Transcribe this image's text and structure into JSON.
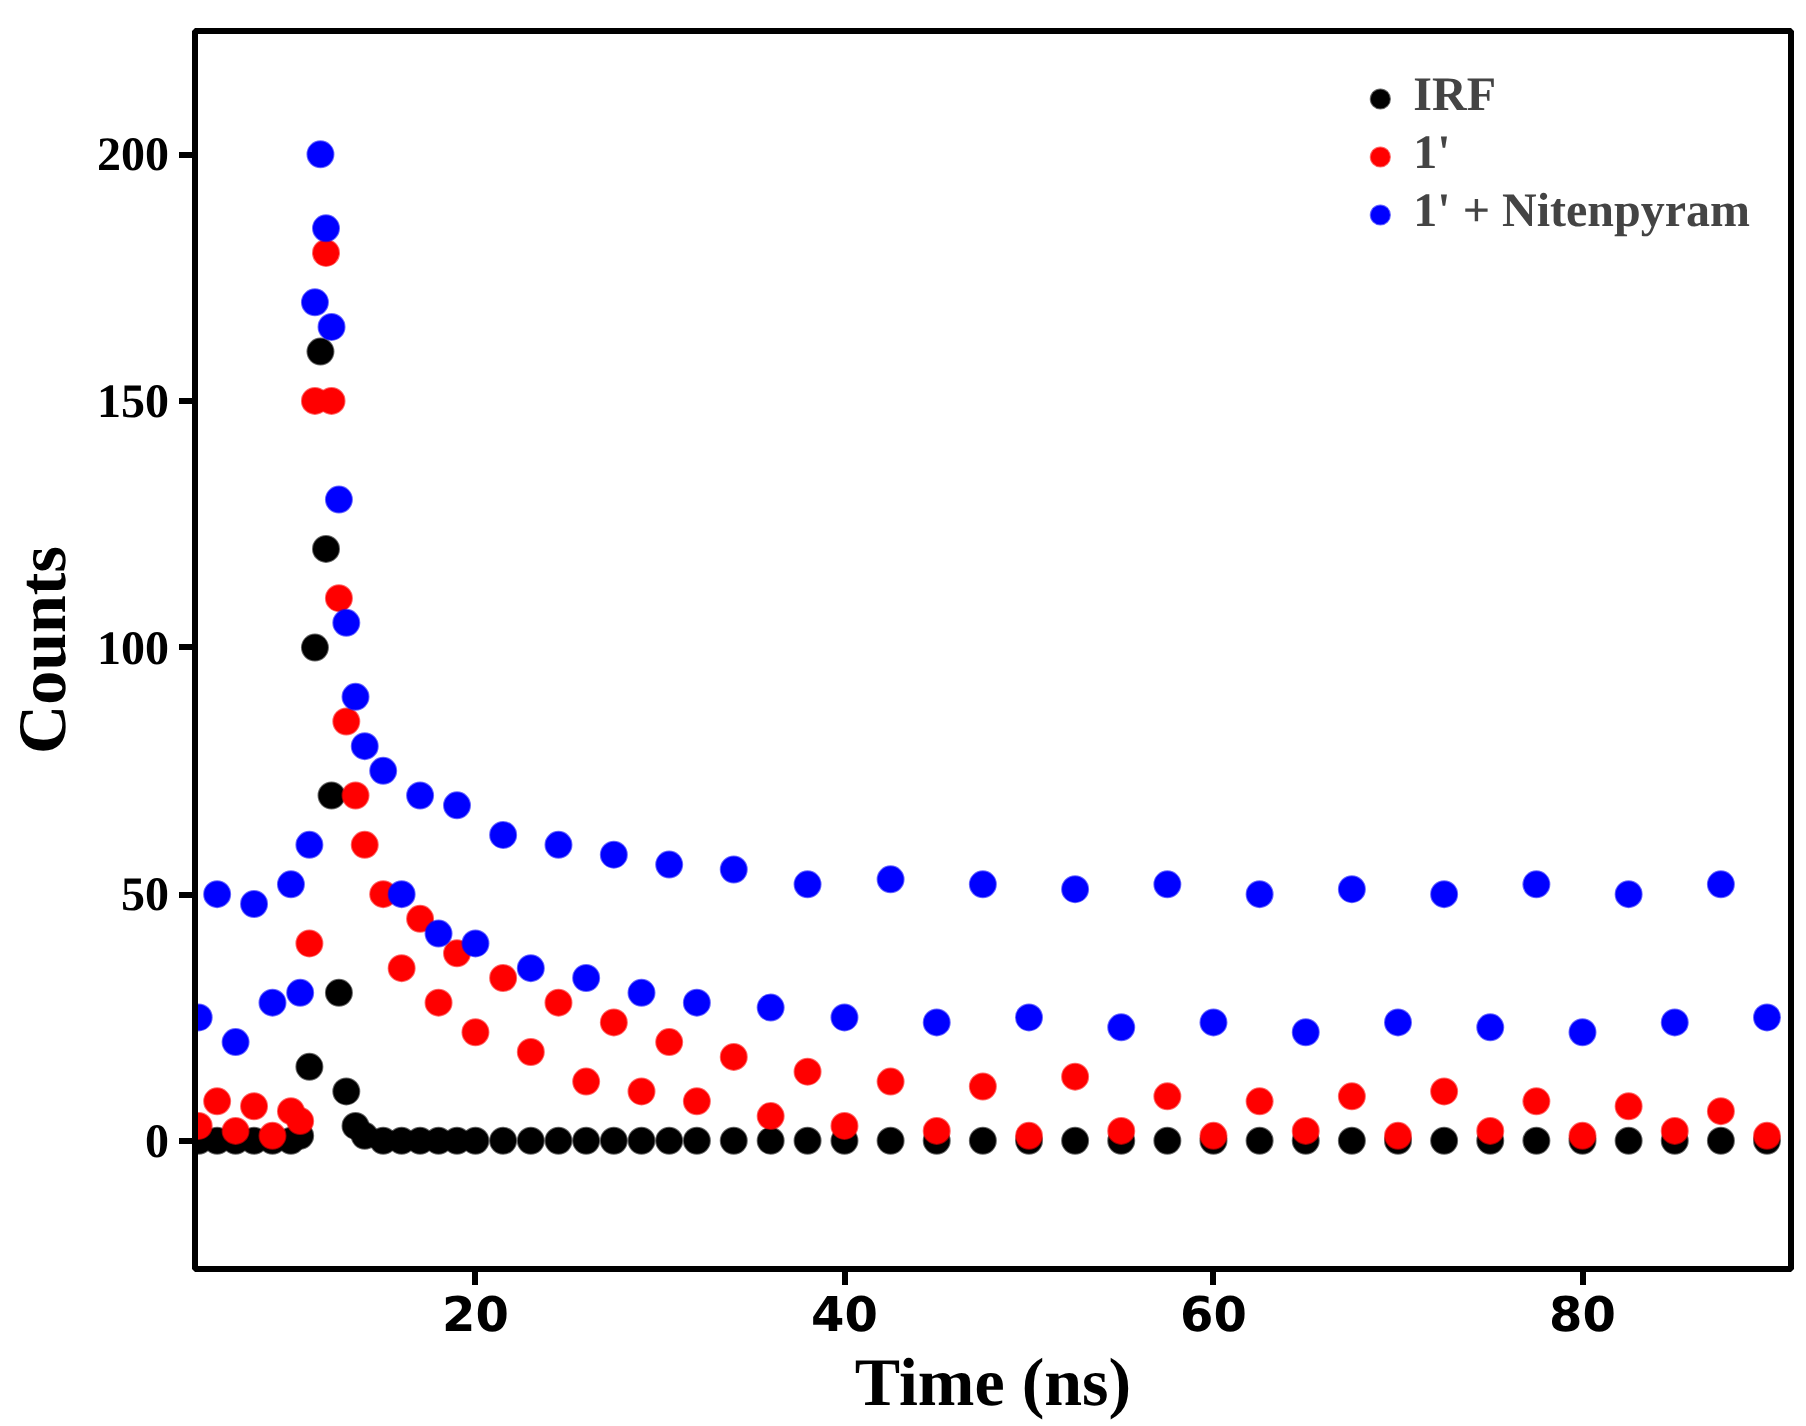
{
  "chart_data": {
    "type": "scatter",
    "xlabel": "Time (ns)",
    "ylabel": "Counts",
    "x": [
      5,
      6,
      7,
      8,
      9,
      10,
      10.5,
      11,
      11.3,
      11.6,
      11.9,
      12.2,
      12.6,
      13,
      13.5,
      14,
      15,
      16,
      17,
      18,
      19,
      20,
      21.5,
      23,
      24.5,
      26,
      27.5,
      29,
      30.5,
      32,
      34,
      36,
      38,
      40,
      42.5,
      45,
      47.5,
      50,
      52.5,
      55,
      57.5,
      60,
      62.5,
      65,
      67.5,
      70,
      72.5,
      75,
      77.5,
      80,
      82.5,
      85,
      87.5,
      90
    ],
    "series": [
      {
        "name": "IRF",
        "color": "#000000",
        "values": [
          0,
          0,
          0,
          0,
          0,
          0,
          1,
          15,
          100,
          160,
          120,
          70,
          30,
          10,
          3,
          1,
          0,
          0,
          0,
          0,
          0,
          0,
          0,
          0,
          0,
          0,
          0,
          0,
          0,
          0,
          0,
          0,
          0,
          0,
          0,
          0,
          0,
          0,
          0,
          0,
          0,
          0,
          0,
          0,
          0,
          0,
          0,
          0,
          0,
          0,
          0,
          0,
          0,
          0
        ]
      },
      {
        "name": "1'",
        "color": "#ff0000",
        "values": [
          3,
          8,
          2,
          7,
          1,
          6,
          4,
          40,
          150,
          null,
          180,
          150,
          110,
          85,
          70,
          60,
          50,
          35,
          45,
          28,
          38,
          22,
          33,
          18,
          28,
          12,
          24,
          10,
          20,
          8,
          17,
          5,
          14,
          3,
          12,
          2,
          11,
          1,
          13,
          2,
          9,
          1,
          8,
          2,
          9,
          1,
          10,
          2,
          8,
          1,
          7,
          2,
          6,
          1
        ]
      },
      {
        "name": "1' + Nitenpyram",
        "color": "#0000ff",
        "values": [
          25,
          50,
          20,
          48,
          28,
          52,
          30,
          60,
          170,
          200,
          185,
          165,
          130,
          105,
          90,
          80,
          75,
          50,
          70,
          42,
          68,
          40,
          62,
          35,
          60,
          33,
          58,
          30,
          56,
          28,
          55,
          27,
          52,
          25,
          53,
          24,
          52,
          25,
          51,
          23,
          52,
          24,
          50,
          22,
          51,
          24,
          50,
          23,
          52,
          22,
          50,
          24,
          52,
          25
        ]
      }
    ],
    "xlim": [
      4.8,
      91.3
    ],
    "xticks": [
      20,
      40,
      60,
      80
    ],
    "ylim": [
      -26,
      225
    ],
    "yticks": [
      0,
      50,
      100,
      150,
      200
    ],
    "marker": "circle",
    "grid": false,
    "legend": "top right"
  }
}
